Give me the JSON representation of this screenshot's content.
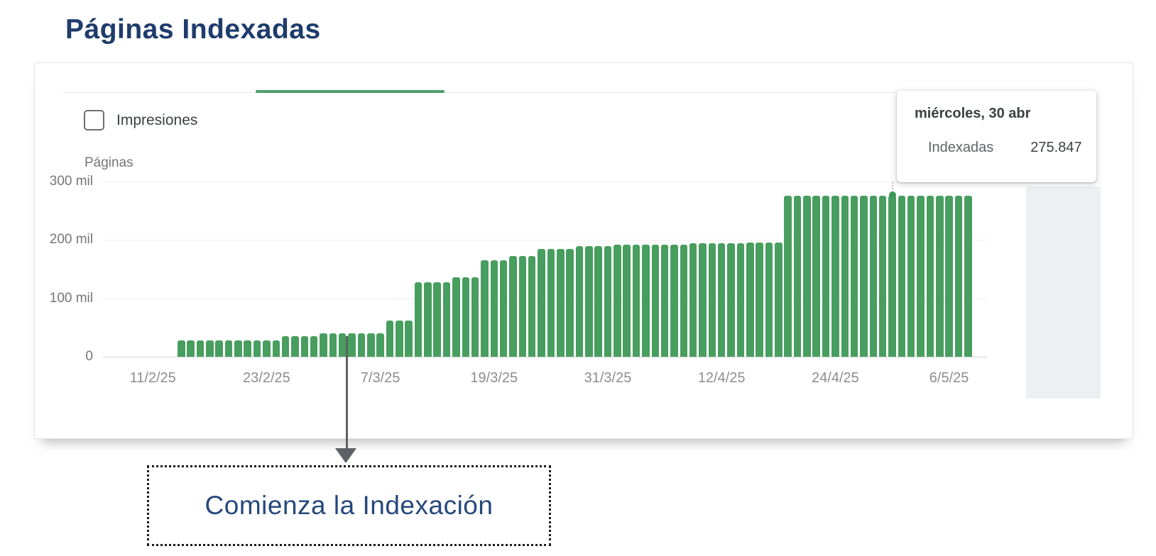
{
  "title": "Páginas Indexadas",
  "controls": {
    "impressions_label": "Impresiones"
  },
  "tooltip": {
    "date": "miércoles, 30 abr",
    "series_label": "Indexadas",
    "value": "275.847"
  },
  "annotation": {
    "text": "Comienza la Indexación"
  },
  "colors": {
    "bar_green": "#479e5e",
    "tab_green": "#4d9d6a",
    "swatch_green": "#3fa058",
    "title_navy": "#1e3c6c",
    "annotation_navy": "#26487c"
  },
  "chart_data": {
    "type": "bar",
    "title": "Páginas Indexadas",
    "xlabel": "",
    "ylabel": "Páginas",
    "ymax": 300000,
    "ylim": [
      0,
      300000
    ],
    "grid": true,
    "y_ticks": [
      "300 mil",
      "200 mil",
      "100 mil",
      "0"
    ],
    "x_ticks": [
      {
        "label": "11/2/25",
        "day": -3
      },
      {
        "label": "23/2/25",
        "day": 9
      },
      {
        "label": "7/3/25",
        "day": 21
      },
      {
        "label": "19/3/25",
        "day": 33
      },
      {
        "label": "31/3/25",
        "day": 45
      },
      {
        "label": "12/4/25",
        "day": 57
      },
      {
        "label": "24/4/25",
        "day": 69
      },
      {
        "label": "6/5/25",
        "day": 81
      }
    ],
    "first_bar_date": "14/2/25",
    "last_bar_date": "8/5/25",
    "series_name": "Indexadas",
    "values": [
      28000,
      28000,
      28000,
      28000,
      28000,
      28000,
      28000,
      28000,
      28000,
      28000,
      28000,
      35000,
      35000,
      35000,
      35000,
      40000,
      40000,
      40000,
      40000,
      40000,
      40000,
      40000,
      62000,
      62000,
      62000,
      128000,
      128000,
      128000,
      128000,
      136000,
      136000,
      136000,
      165000,
      165000,
      165000,
      172000,
      172000,
      172000,
      185000,
      185000,
      185000,
      185000,
      190000,
      190000,
      190000,
      190000,
      192000,
      192000,
      192000,
      192000,
      192000,
      192000,
      192000,
      192000,
      194000,
      194000,
      194000,
      194000,
      194000,
      194000,
      196000,
      196000,
      196000,
      196000,
      275847,
      275847,
      275847,
      275847,
      275847,
      275847,
      275847,
      275847,
      275847,
      275847,
      275847,
      275847,
      275847,
      275847,
      275847,
      275847,
      275847,
      275847,
      275847,
      275847
    ],
    "highlight": {
      "index": 75,
      "date": "30/4/25",
      "value": 275847
    }
  }
}
